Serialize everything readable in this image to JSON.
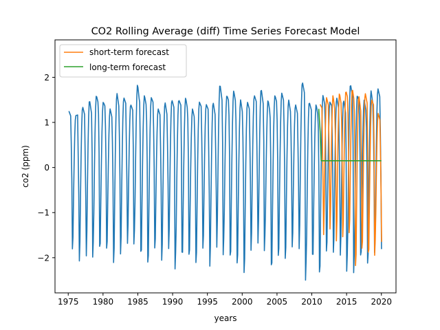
{
  "chart_data": {
    "type": "line",
    "title": "CO2 Rolling Average (diff) Time Series Forecast Model",
    "xlabel": "years",
    "ylabel": "co2 (ppm)",
    "xlim": [
      1973.1,
      2022.1
    ],
    "ylim": [
      -2.78,
      2.83
    ],
    "x_ticks": [
      1975,
      1980,
      1985,
      1990,
      1995,
      2000,
      2005,
      2010,
      2015,
      2020
    ],
    "x_tick_labels": [
      "1975",
      "1980",
      "1985",
      "1990",
      "1995",
      "2000",
      "2005",
      "2010",
      "2015",
      "2020"
    ],
    "y_ticks": [
      -2,
      -1,
      0,
      1,
      2
    ],
    "y_tick_labels": [
      "−2",
      "−1",
      "0",
      "1",
      "2"
    ],
    "legend": {
      "position": "upper-left",
      "entries": [
        "short-term forecast",
        "long-term forecast"
      ]
    },
    "grid": false,
    "series": [
      {
        "name": "",
        "color": "#1f77b4",
        "description": "monthly seasonal differenced CO2, 1975-2020",
        "x_start": 1975.1,
        "x_end": 2020.0,
        "peaks": [
          1.25,
          1.15,
          1.35,
          1.5,
          1.6,
          1.45,
          1.3,
          1.65,
          1.55,
          1.4,
          1.85,
          1.6,
          1.55,
          1.3,
          1.45,
          1.5,
          1.5,
          1.55,
          1.3,
          1.45,
          1.4,
          1.45,
          1.85,
          1.6,
          1.7,
          1.5,
          1.45,
          1.6,
          1.75,
          1.5,
          1.6,
          1.65,
          1.5,
          1.4,
          1.9,
          1.45,
          1.4,
          1.6,
          1.45,
          1.55,
          1.5,
          1.85,
          1.6,
          1.5,
          1.7,
          1.75
        ],
        "troughs": [
          -2.0,
          -2.35,
          -2.3,
          -2.0,
          -1.8,
          -1.9,
          -2.3,
          -2.2,
          -2.0,
          -1.7,
          -1.9,
          -2.2,
          -1.95,
          -2.3,
          -2.1,
          -2.25,
          -1.9,
          -2.0,
          -2.25,
          -2.0,
          -2.5,
          -2.1,
          -1.95,
          -2.0,
          -2.25,
          -2.55,
          -2.1,
          -2.0,
          -1.85,
          -2.2,
          -2.05,
          -2.2,
          -2.0,
          -2.1,
          -2.5,
          -1.95,
          -2.4,
          -2.0,
          -2.1,
          -2.25,
          -2.3,
          -2.35,
          -2.0,
          -2.25,
          -2.1
        ]
      },
      {
        "name": "short-term forecast",
        "color": "#ff7f0e",
        "x_start": 2011.2,
        "x_end": 2020.0,
        "peaks": [
          1.4,
          1.55,
          1.6,
          1.65,
          1.7,
          1.75,
          1.6,
          1.65,
          1.5,
          1.2
        ],
        "troughs": [
          -1.8,
          -1.65,
          -1.9,
          -1.75,
          -1.6,
          -2.3,
          -1.85,
          -1.9,
          -1.95
        ]
      },
      {
        "name": "long-term forecast",
        "color": "#2ca02c",
        "points": [
          [
            2011.0,
            1.3
          ],
          [
            2011.2,
            0.8
          ],
          [
            2011.35,
            0.15
          ],
          [
            2020.0,
            0.15
          ]
        ]
      }
    ]
  }
}
